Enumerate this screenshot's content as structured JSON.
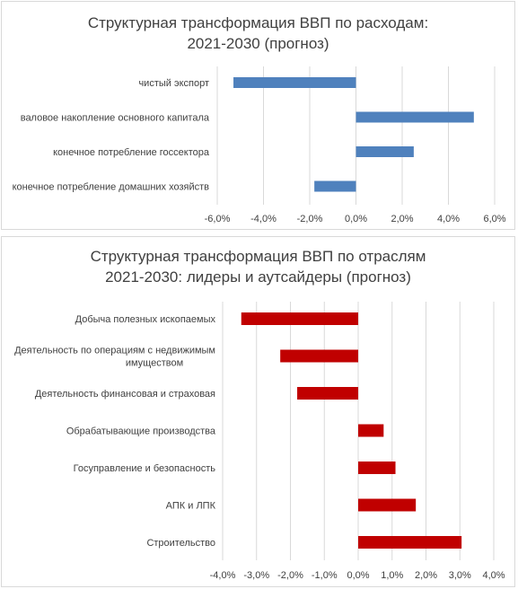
{
  "chart_data": [
    {
      "type": "bar",
      "orientation": "horizontal",
      "title_lines": [
        "Структурная трансформация ВВП по расходам:",
        "2021-2030 (прогноз)"
      ],
      "categories": [
        "чистый экспорт",
        "валовое накопление основного капитала",
        "конечное потребление госсектора",
        "конечное потребление домашних хозяйств"
      ],
      "values": [
        -5.3,
        5.1,
        2.5,
        -1.8
      ],
      "ticks": [
        "-6,0%",
        "-4,0%",
        "-2,0%",
        "0,0%",
        "2,0%",
        "4,0%",
        "6,0%"
      ],
      "xlim": [
        -6,
        6
      ],
      "bar_color": "#4f81bd",
      "grid": true
    },
    {
      "type": "bar",
      "orientation": "horizontal",
      "title_lines": [
        "Структурная трансформация ВВП по отраслям",
        "2021-2030: лидеры и аутсайдеры (прогноз)"
      ],
      "categories": [
        [
          "Добыча полезных ископаемых"
        ],
        [
          "Деятельность по операциям с недвижимым",
          "имуществом"
        ],
        [
          "Деятельность финансовая и страховая"
        ],
        [
          "Обрабатывающие производства"
        ],
        [
          "Госуправление и безопасность"
        ],
        [
          "АПК и ЛПК"
        ],
        [
          "Строительство"
        ]
      ],
      "values": [
        -3.45,
        -2.3,
        -1.8,
        0.75,
        1.1,
        1.7,
        3.05
      ],
      "ticks": [
        "-4,0%",
        "-3,0%",
        "-2,0%",
        "-1,0%",
        "0,0%",
        "1,0%",
        "2,0%",
        "3,0%",
        "4,0%"
      ],
      "xlim": [
        -4,
        4
      ],
      "bar_color": "#c00000",
      "grid": true
    }
  ]
}
